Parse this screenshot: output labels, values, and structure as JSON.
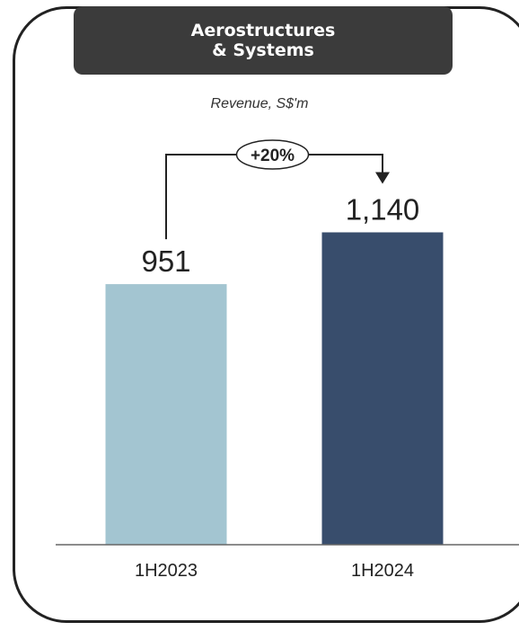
{
  "header": {
    "title_line1": "Aerostructures",
    "title_line2": "& Systems"
  },
  "colors": {
    "title_bg": "#3b3b3b",
    "bar_1h2023": "#a3c5d1",
    "bar_1h2024": "#384d6c"
  },
  "chart_data": {
    "type": "bar",
    "title": "Revenue, S$'m",
    "categories": [
      "1H2023",
      "1H2024"
    ],
    "values": [
      951,
      1140
    ],
    "data_labels": [
      "951",
      "1,140"
    ],
    "annotation": "+20%",
    "ylim": [
      0,
      1240
    ],
    "grid": false,
    "legend": "none"
  }
}
